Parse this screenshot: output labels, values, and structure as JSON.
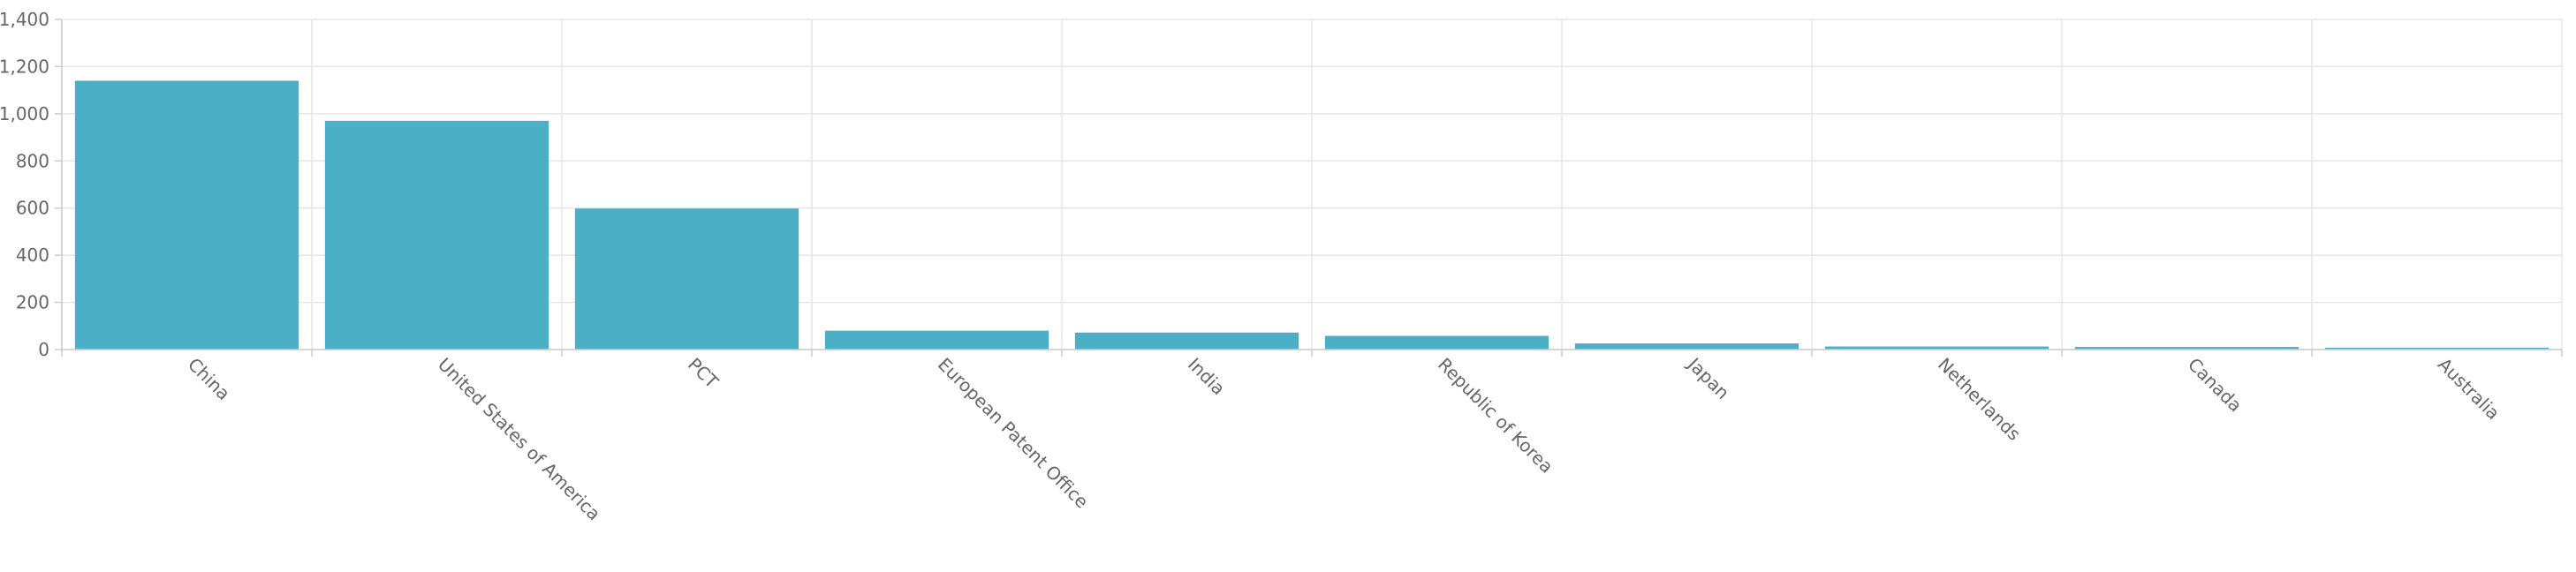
{
  "chart_data": {
    "type": "bar",
    "categories": [
      "China",
      "United States of America",
      "PCT",
      "European Patent Office",
      "India",
      "Republic of Korea",
      "Japan",
      "Netherlands",
      "Canada",
      "Australia"
    ],
    "values": [
      1140,
      970,
      598,
      80,
      72,
      58,
      26,
      13,
      11,
      8
    ],
    "ylim": [
      0,
      1400
    ],
    "yticks": [
      0,
      200,
      400,
      600,
      800,
      1000,
      1200,
      1400
    ],
    "ytick_labels": [
      "0",
      "200",
      "400",
      "600",
      "800",
      "1,000",
      "1,200",
      "1,400"
    ],
    "bar_color": "#4bb0c6",
    "grid": true,
    "xlabel_rotation": 45
  }
}
